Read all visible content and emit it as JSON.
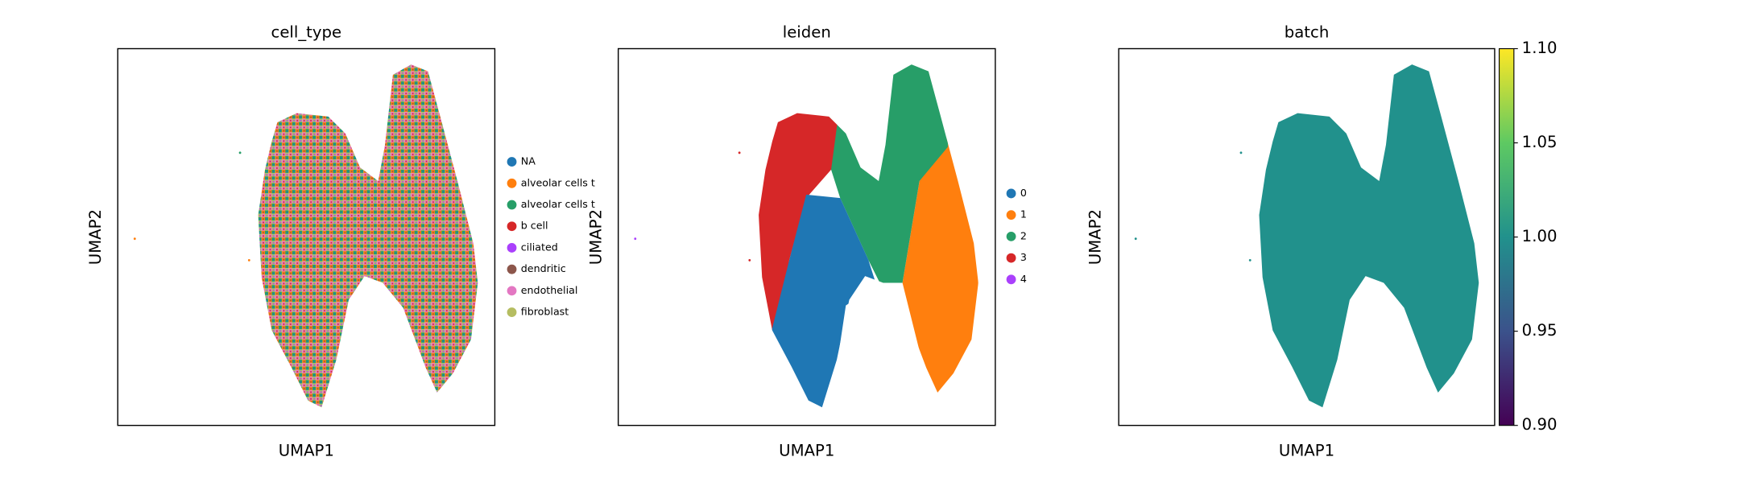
{
  "chart_data": [
    {
      "type": "scatter",
      "title": "cell_type",
      "xlabel": "UMAP1",
      "ylabel": "UMAP2",
      "legend": "outside right",
      "series": [
        {
          "name": "NA",
          "color": "#1f77b4"
        },
        {
          "name": "alveolar cells t",
          "color": "#ff7f0e"
        },
        {
          "name": "alveolar cells t",
          "color": "#279e68"
        },
        {
          "name": "b cell",
          "color": "#d62728"
        },
        {
          "name": "ciliated",
          "color": "#aa40fc"
        },
        {
          "name": "dendritic",
          "color": "#8c564b"
        },
        {
          "name": "endothelial",
          "color": "#e377c2"
        },
        {
          "name": "fibroblast",
          "color": "#b5bd61"
        }
      ]
    },
    {
      "type": "scatter",
      "title": "leiden",
      "xlabel": "UMAP1",
      "ylabel": "UMAP2",
      "legend": "outside right",
      "series": [
        {
          "name": "0",
          "color": "#1f77b4"
        },
        {
          "name": "1",
          "color": "#ff7f0e"
        },
        {
          "name": "2",
          "color": "#279e68"
        },
        {
          "name": "3",
          "color": "#d62728"
        },
        {
          "name": "4",
          "color": "#aa40fc"
        }
      ]
    },
    {
      "type": "scatter",
      "title": "batch",
      "xlabel": "UMAP1",
      "ylabel": "UMAP2",
      "color": "#21918c",
      "colormap": "viridis",
      "clim": [
        0.9,
        1.1
      ],
      "cticks": [
        {
          "value": 0.9,
          "label": "0.90"
        },
        0.95,
        {
          "value": 1.0,
          "label": "1.00"
        },
        1.05,
        {
          "value": 1.1,
          "label": "1.10"
        }
      ]
    }
  ]
}
